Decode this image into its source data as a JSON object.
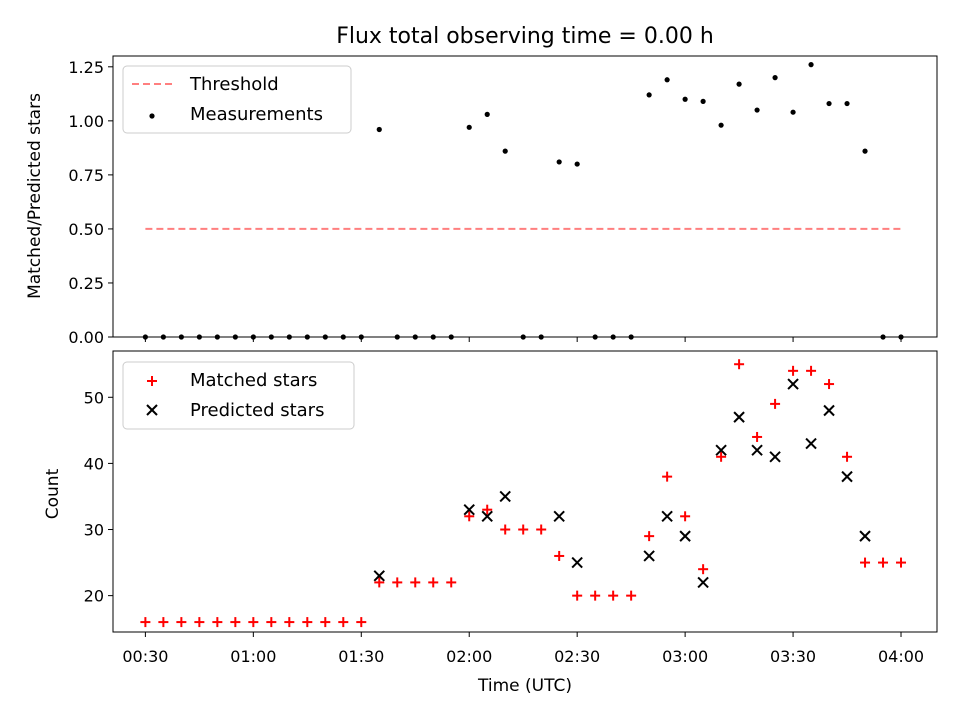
{
  "chart_data": [
    {
      "type": "scatter",
      "title": "Flux total observing time = 0.00 h",
      "xlabel": "",
      "ylabel": "Matched/Predicted stars",
      "ylim": [
        0,
        1.3
      ],
      "yticks": [
        0.0,
        0.25,
        0.5,
        0.75,
        1.0,
        1.25
      ],
      "ytick_labels": [
        "0.00",
        "0.25",
        "0.50",
        "0.75",
        "1.00",
        "1.25"
      ],
      "legend_position": "top-left",
      "series": [
        {
          "name": "Threshold",
          "kind": "dashed-line",
          "color": "#ff7f7f",
          "x": [
            "00:30",
            "04:00"
          ],
          "y": [
            0.5,
            0.5
          ]
        },
        {
          "name": "Measurements",
          "kind": "dot",
          "color": "#000000",
          "x": [
            "00:30",
            "00:35",
            "00:40",
            "00:45",
            "00:50",
            "00:55",
            "01:00",
            "01:05",
            "01:10",
            "01:15",
            "01:20",
            "01:25",
            "01:30",
            "01:35",
            "01:40",
            "01:45",
            "01:50",
            "01:55",
            "02:00",
            "02:05",
            "02:10",
            "02:15",
            "02:20",
            "02:25",
            "02:30",
            "02:35",
            "02:40",
            "02:45",
            "02:50",
            "02:55",
            "03:00",
            "03:05",
            "03:10",
            "03:15",
            "03:20",
            "03:25",
            "03:30",
            "03:35",
            "03:40",
            "03:45",
            "03:50",
            "03:55",
            "04:00"
          ],
          "y": [
            0,
            0,
            0,
            0,
            0,
            0,
            0,
            0,
            0,
            0,
            0,
            0,
            0,
            0.96,
            0,
            0,
            0,
            0,
            0.97,
            1.03,
            0.86,
            0,
            0,
            0.81,
            0.8,
            0,
            0,
            0,
            1.12,
            1.19,
            1.1,
            1.09,
            0.98,
            1.17,
            1.05,
            1.2,
            1.04,
            1.26,
            1.08,
            1.08,
            0.86,
            0,
            0
          ]
        }
      ]
    },
    {
      "type": "scatter",
      "title": "",
      "xlabel": "Time (UTC)",
      "ylabel": "Count",
      "ylim": [
        14.5,
        57
      ],
      "yticks": [
        20,
        30,
        40,
        50
      ],
      "ytick_labels": [
        "20",
        "30",
        "40",
        "50"
      ],
      "xlim": [
        "00:21",
        "04:10"
      ],
      "xticks": [
        "00:30",
        "01:00",
        "01:30",
        "02:00",
        "02:30",
        "03:00",
        "03:30",
        "04:00"
      ],
      "legend_position": "top-left",
      "series": [
        {
          "name": "Matched stars",
          "kind": "plus",
          "color": "#ff0000",
          "x": [
            "00:30",
            "00:35",
            "00:40",
            "00:45",
            "00:50",
            "00:55",
            "01:00",
            "01:05",
            "01:10",
            "01:15",
            "01:20",
            "01:25",
            "01:30",
            "01:35",
            "01:40",
            "01:45",
            "01:50",
            "01:55",
            "02:00",
            "02:05",
            "02:10",
            "02:15",
            "02:20",
            "02:25",
            "02:30",
            "02:35",
            "02:40",
            "02:45",
            "02:50",
            "02:55",
            "03:00",
            "03:05",
            "03:10",
            "03:15",
            "03:20",
            "03:25",
            "03:30",
            "03:35",
            "03:40",
            "03:45",
            "03:50",
            "03:55",
            "04:00"
          ],
          "y": [
            16,
            16,
            16,
            16,
            16,
            16,
            16,
            16,
            16,
            16,
            16,
            16,
            16,
            22,
            22,
            22,
            22,
            22,
            32,
            33,
            30,
            30,
            30,
            26,
            20,
            20,
            20,
            20,
            29,
            38,
            32,
            24,
            41,
            55,
            44,
            49,
            54,
            54,
            52,
            41,
            25,
            25,
            25
          ]
        },
        {
          "name": "Predicted stars",
          "kind": "x",
          "color": "#000000",
          "x": [
            "01:35",
            "02:00",
            "02:05",
            "02:10",
            "02:25",
            "02:30",
            "02:50",
            "02:55",
            "03:00",
            "03:05",
            "03:10",
            "03:15",
            "03:20",
            "03:25",
            "03:30",
            "03:35",
            "03:40",
            "03:45",
            "03:50"
          ],
          "y": [
            23,
            33,
            32,
            35,
            32,
            25,
            26,
            32,
            29,
            22,
            42,
            47,
            42,
            41,
            52,
            43,
            48,
            38,
            29
          ]
        }
      ]
    }
  ]
}
